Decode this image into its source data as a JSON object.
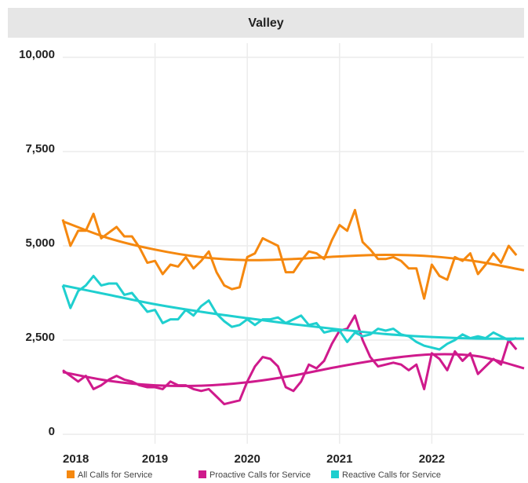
{
  "chart_data": {
    "type": "line",
    "title": "Valley",
    "x": [
      2018,
      2018.083,
      2018.167,
      2018.25,
      2018.333,
      2018.417,
      2018.5,
      2018.583,
      2018.667,
      2018.75,
      2018.833,
      2018.917,
      2019,
      2019.083,
      2019.167,
      2019.25,
      2019.333,
      2019.417,
      2019.5,
      2019.583,
      2019.667,
      2019.75,
      2019.833,
      2019.917,
      2020,
      2020.083,
      2020.167,
      2020.25,
      2020.333,
      2020.417,
      2020.5,
      2020.583,
      2020.667,
      2020.75,
      2020.833,
      2020.917,
      2021,
      2021.083,
      2021.167,
      2021.25,
      2021.333,
      2021.417,
      2021.5,
      2021.583,
      2021.667,
      2021.75,
      2021.833,
      2021.917,
      2022,
      2022.083,
      2022.167,
      2022.25,
      2022.333,
      2022.417,
      2022.5,
      2022.583,
      2022.667,
      2022.75,
      2022.833,
      2022.917
    ],
    "trend_x": [
      2018,
      2018.5,
      2019,
      2019.5,
      2020,
      2020.5,
      2021,
      2021.5,
      2022,
      2022.5,
      2023
    ],
    "series": [
      {
        "name": "All Calls for Service",
        "color": "#f5880f",
        "values": [
          5700,
          5000,
          5400,
          5400,
          5850,
          5200,
          5350,
          5500,
          5250,
          5250,
          4950,
          4550,
          4600,
          4250,
          4500,
          4450,
          4700,
          4400,
          4600,
          4850,
          4300,
          3950,
          3850,
          3900,
          4700,
          4800,
          5200,
          5100,
          5000,
          4300,
          4300,
          4600,
          4850,
          4800,
          4650,
          5150,
          5550,
          5400,
          5950,
          5100,
          4900,
          4650,
          4650,
          4700,
          4600,
          4400,
          4400,
          3600,
          4500,
          4200,
          4100,
          4700,
          4600,
          4800,
          4250,
          4500,
          4800,
          4550,
          5000,
          4750
        ],
        "trend": [
          5650,
          5200,
          4900,
          4700,
          4620,
          4650,
          4720,
          4760,
          4720,
          4580,
          4350
        ]
      },
      {
        "name": "Proactive Calls for Service",
        "color": "#cf1a8c",
        "values": [
          1700,
          1550,
          1400,
          1550,
          1200,
          1300,
          1450,
          1550,
          1450,
          1400,
          1300,
          1250,
          1250,
          1200,
          1400,
          1300,
          1300,
          1200,
          1150,
          1200,
          1000,
          800,
          850,
          900,
          1400,
          1800,
          2050,
          2000,
          1800,
          1250,
          1150,
          1400,
          1850,
          1750,
          1950,
          2400,
          2750,
          2800,
          3150,
          2500,
          2050,
          1800,
          1850,
          1900,
          1850,
          1700,
          1850,
          1200,
          2150,
          2000,
          1700,
          2200,
          1950,
          2150,
          1600,
          1800,
          2000,
          1850,
          2500,
          2250
        ],
        "trend": [
          1650,
          1420,
          1300,
          1290,
          1380,
          1560,
          1800,
          2000,
          2120,
          2070,
          1750
        ]
      },
      {
        "name": "Reactive Calls for Service",
        "color": "#1fcfcf",
        "values": [
          3950,
          3350,
          3800,
          3950,
          4200,
          3950,
          4000,
          4000,
          3700,
          3750,
          3500,
          3250,
          3300,
          2950,
          3050,
          3050,
          3300,
          3150,
          3400,
          3550,
          3200,
          3000,
          2850,
          2900,
          3050,
          2900,
          3050,
          3050,
          3100,
          2950,
          3050,
          3150,
          2900,
          2950,
          2700,
          2750,
          2750,
          2450,
          2700,
          2600,
          2650,
          2800,
          2750,
          2800,
          2650,
          2600,
          2450,
          2350,
          2300,
          2250,
          2400,
          2500,
          2650,
          2550,
          2600,
          2550,
          2700,
          2600,
          2500,
          2550
        ],
        "trend": [
          3950,
          3700,
          3450,
          3250,
          3080,
          2920,
          2780,
          2660,
          2580,
          2540,
          2540
        ]
      }
    ],
    "xlim": [
      2018,
      2023
    ],
    "xticks": [
      2018,
      2019,
      2020,
      2021,
      2022
    ],
    "ylim": [
      0,
      10000
    ],
    "yticks": [
      0,
      {
        "value": 2500,
        "label": "2,500"
      },
      {
        "value": 5000,
        "label": "5,000"
      },
      {
        "value": 7500,
        "label": "7,500"
      },
      {
        "value": 10000,
        "label": "10,000"
      }
    ],
    "grid": true
  }
}
